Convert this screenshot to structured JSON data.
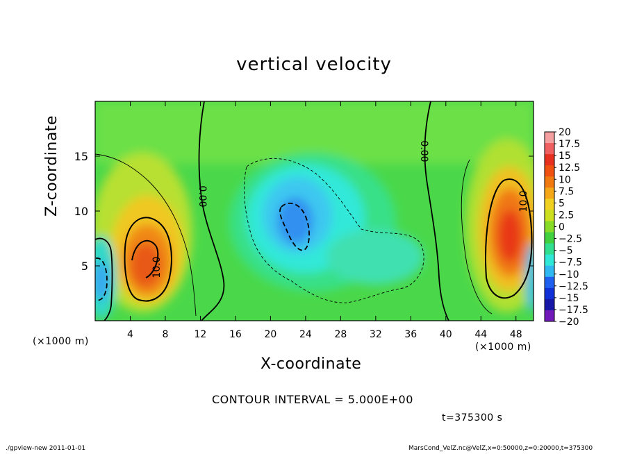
{
  "chart_data": {
    "type": "heatmap",
    "title": "vertical velocity",
    "xlabel": "X-coordinate",
    "ylabel": "Z-coordinate",
    "x_unit_label": "(×1000 m)",
    "y_unit_label": "(×1000 m)",
    "xlim": [
      0,
      50
    ],
    "ylim": [
      0,
      20
    ],
    "x_ticks": [
      4,
      8,
      12,
      16,
      20,
      24,
      28,
      32,
      36,
      40,
      44,
      48
    ],
    "y_ticks": [
      5,
      10,
      15
    ],
    "colorbar": {
      "labels": [
        "20",
        "17.5",
        "15",
        "12.5",
        "10",
        "7.5",
        "5",
        "2.5",
        "0",
        "−2.5",
        "−5",
        "−7.5",
        "−10",
        "−12.5",
        "−15",
        "−17.5",
        "−20"
      ],
      "colors": [
        "#f4a0a0",
        "#f06060",
        "#e83020",
        "#f05010",
        "#f07a10",
        "#f4a818",
        "#f0d020",
        "#cce020",
        "#88dc28",
        "#40d040",
        "#30e090",
        "#30e8d8",
        "#30b8f0",
        "#2060f0",
        "#1030d8",
        "#1818a8",
        "#7018b8"
      ]
    },
    "features": [
      {
        "kind": "updraft",
        "x": 6,
        "z": 5.5,
        "peak": 12.5
      },
      {
        "kind": "downdraft",
        "x": 1,
        "z": 4,
        "peak": -7.5
      },
      {
        "kind": "downdraft",
        "x": 23,
        "z": 9,
        "peak": -10
      },
      {
        "kind": "updraft",
        "x": 47,
        "z": 7.5,
        "peak": 15
      }
    ],
    "contour_labels": [
      "10.0",
      "0.00",
      "0.00",
      "10.0"
    ],
    "contour_interval_text": "CONTOUR INTERVAL = 5.000E+00",
    "time_text": "t=375300  s"
  },
  "footer": {
    "left": "./gpview-new   2011-01-01",
    "right": "MarsCond_VelZ.nc@VelZ,x=0:50000,z=0:20000,t=375300"
  }
}
